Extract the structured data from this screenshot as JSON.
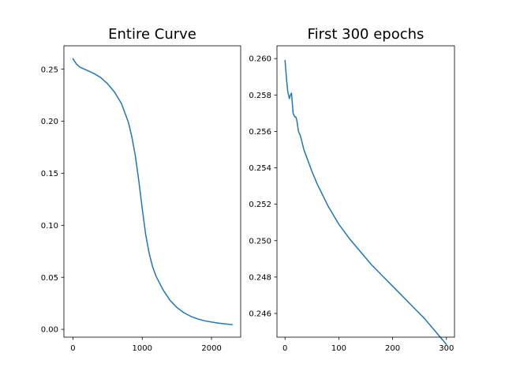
{
  "chart_data": [
    {
      "type": "line",
      "title": "Entire Curve",
      "xlabel": "",
      "ylabel": "",
      "xlim": [
        -130,
        2420
      ],
      "ylim": [
        -0.0075,
        0.2725
      ],
      "xticks": [
        0,
        1000,
        2000
      ],
      "xtick_labels": [
        "0",
        "1000",
        "2000"
      ],
      "yticks": [
        0.0,
        0.05,
        0.1,
        0.15,
        0.2,
        0.25
      ],
      "ytick_labels": [
        "0.00",
        "0.05",
        "0.10",
        "0.15",
        "0.20",
        "0.25"
      ],
      "grid": false,
      "color": "#1f77b4",
      "series": [
        {
          "x": [
            0,
            50,
            100,
            200,
            300,
            400,
            500,
            600,
            700,
            800,
            850,
            900,
            950,
            1000,
            1050,
            1100,
            1150,
            1200,
            1300,
            1400,
            1500,
            1600,
            1700,
            1800,
            1900,
            2000,
            2100,
            2200,
            2300
          ],
          "y": [
            0.26,
            0.255,
            0.252,
            0.249,
            0.246,
            0.242,
            0.236,
            0.228,
            0.217,
            0.199,
            0.185,
            0.167,
            0.143,
            0.116,
            0.091,
            0.073,
            0.06,
            0.051,
            0.038,
            0.028,
            0.021,
            0.016,
            0.0125,
            0.01,
            0.0082,
            0.007,
            0.006,
            0.0052,
            0.0045
          ]
        }
      ]
    },
    {
      "type": "line",
      "title": "First 300 epochs",
      "xlabel": "",
      "ylabel": "",
      "xlim": [
        -15,
        315
      ],
      "ylim": [
        0.2447,
        0.2607
      ],
      "xticks": [
        0,
        100,
        200,
        300
      ],
      "xtick_labels": [
        "0",
        "100",
        "200",
        "300"
      ],
      "yticks": [
        0.246,
        0.248,
        0.25,
        0.252,
        0.254,
        0.256,
        0.258,
        0.26
      ],
      "ytick_labels": [
        "0.246",
        "0.248",
        "0.250",
        "0.252",
        "0.254",
        "0.256",
        "0.258",
        "0.260"
      ],
      "grid": false,
      "color": "#1f77b4",
      "series": [
        {
          "x": [
            0,
            3,
            5,
            8,
            10,
            12,
            15,
            18,
            20,
            22,
            25,
            28,
            30,
            35,
            40,
            50,
            60,
            70,
            80,
            90,
            100,
            120,
            140,
            160,
            180,
            200,
            220,
            240,
            260,
            280,
            300
          ],
          "y": [
            0.2599,
            0.2588,
            0.2582,
            0.2578,
            0.258,
            0.2581,
            0.257,
            0.2568,
            0.2568,
            0.2566,
            0.256,
            0.2558,
            0.2556,
            0.255,
            0.2546,
            0.2538,
            0.2531,
            0.2525,
            0.2519,
            0.2514,
            0.2509,
            0.2501,
            0.2494,
            0.2487,
            0.2481,
            0.2475,
            0.2469,
            0.2463,
            0.2457,
            0.245,
            0.2443
          ]
        }
      ]
    }
  ]
}
